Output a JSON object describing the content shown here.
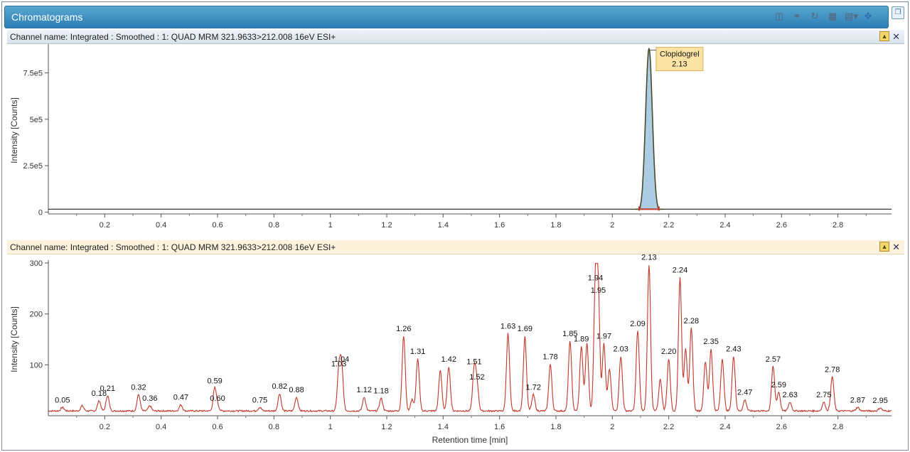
{
  "window": {
    "title": "Chromatograms",
    "toolbar_icons": [
      "zoom-icon",
      "overlay-icon",
      "refresh-icon",
      "table-icon",
      "export-icon",
      "move-icon"
    ],
    "restore_icon": "restore-window-icon"
  },
  "panes": [
    {
      "channel_label": "Channel name: Integrated : Smoothed : 1: QUAD MRM 321.9633>212.008 16eV ESI+"
    },
    {
      "channel_label": "Channel name: Integrated : Smoothed : 1: QUAD MRM 321.9633>212.008 16eV ESI+"
    }
  ],
  "chart_data": [
    {
      "type": "line",
      "xlabel": "",
      "ylabel": "Intensity [Counts]",
      "xlim": [
        0.0,
        2.99
      ],
      "ylim": [
        -10000,
        890000
      ],
      "x_ticks": [
        "0.2",
        "0.4",
        "0.6",
        "0.8",
        "1",
        "1.2",
        "1.4",
        "1.6",
        "1.8",
        "2",
        "2.2",
        "2.4",
        "2.6",
        "2.8"
      ],
      "y_ticks": [
        "0",
        "2.5e5",
        "5e5",
        "7.5e5"
      ],
      "y_tick_values": [
        0,
        250000,
        500000,
        750000
      ],
      "peaks": [
        {
          "center": 2.13,
          "height": 880000,
          "width": 0.012,
          "integrated": true
        }
      ],
      "annotations": [
        {
          "name": "Clopidogrel",
          "rt": "2.13",
          "x": 2.13,
          "y": 880000
        }
      ],
      "colors": {
        "line": "#4a4a2a",
        "fill": "#9cc3dd",
        "baseline": "#c0392b",
        "annotation_bg": "#fbe3a4"
      }
    },
    {
      "type": "line",
      "xlabel": "Retention time [min]",
      "ylabel": "Intensity [Counts]",
      "xlim": [
        0.0,
        2.99
      ],
      "ylim": [
        0,
        300
      ],
      "x_ticks": [
        "0.2",
        "0.4",
        "0.6",
        "0.8",
        "1",
        "1.2",
        "1.4",
        "1.6",
        "1.8",
        "2",
        "2.2",
        "2.4",
        "2.6",
        "2.8"
      ],
      "y_ticks": [
        "100",
        "200",
        "300"
      ],
      "y_tick_values": [
        100,
        200,
        300
      ],
      "peaks": [
        {
          "x": 0.05,
          "y": 15,
          "label": "0.05"
        },
        {
          "x": 0.12,
          "y": 18
        },
        {
          "x": 0.18,
          "y": 28,
          "label": "0.18"
        },
        {
          "x": 0.21,
          "y": 38,
          "label": "0.21"
        },
        {
          "x": 0.32,
          "y": 40,
          "label": "0.32"
        },
        {
          "x": 0.36,
          "y": 18,
          "label": "0.36"
        },
        {
          "x": 0.47,
          "y": 20,
          "label": "0.47"
        },
        {
          "x": 0.59,
          "y": 52,
          "label": "0.59"
        },
        {
          "x": 0.6,
          "y": 18,
          "label": "0.60"
        },
        {
          "x": 0.75,
          "y": 15,
          "label": "0.75"
        },
        {
          "x": 0.82,
          "y": 42,
          "label": "0.82"
        },
        {
          "x": 0.88,
          "y": 35,
          "label": "0.88"
        },
        {
          "x": 1.03,
          "y": 86,
          "label": "1.03"
        },
        {
          "x": 1.04,
          "y": 95,
          "label": "1.04"
        },
        {
          "x": 1.12,
          "y": 35,
          "label": "1.12"
        },
        {
          "x": 1.18,
          "y": 33,
          "label": "1.18"
        },
        {
          "x": 1.26,
          "y": 155,
          "label": "1.26"
        },
        {
          "x": 1.29,
          "y": 30
        },
        {
          "x": 1.31,
          "y": 110,
          "label": "1.31"
        },
        {
          "x": 1.39,
          "y": 88
        },
        {
          "x": 1.42,
          "y": 95,
          "label": "1.42"
        },
        {
          "x": 1.51,
          "y": 90,
          "label": "1.51"
        },
        {
          "x": 1.52,
          "y": 60,
          "label": "1.52"
        },
        {
          "x": 1.63,
          "y": 160,
          "label": "1.63"
        },
        {
          "x": 1.69,
          "y": 155,
          "label": "1.69"
        },
        {
          "x": 1.72,
          "y": 40,
          "label": "1.72"
        },
        {
          "x": 1.78,
          "y": 100,
          "label": "1.78"
        },
        {
          "x": 1.85,
          "y": 145,
          "label": "1.85"
        },
        {
          "x": 1.89,
          "y": 135,
          "label": "1.89"
        },
        {
          "x": 1.91,
          "y": 140
        },
        {
          "x": 1.94,
          "y": 255,
          "label": "1.94"
        },
        {
          "x": 1.95,
          "y": 230,
          "label": "1.95"
        },
        {
          "x": 1.97,
          "y": 140,
          "label": "1.97"
        },
        {
          "x": 1.99,
          "y": 90
        },
        {
          "x": 2.03,
          "y": 115,
          "label": "2.03"
        },
        {
          "x": 2.09,
          "y": 165,
          "label": "2.09"
        },
        {
          "x": 2.13,
          "y": 295,
          "label": "2.13"
        },
        {
          "x": 2.17,
          "y": 70
        },
        {
          "x": 2.2,
          "y": 110,
          "label": "2.20"
        },
        {
          "x": 2.24,
          "y": 270,
          "label": "2.24"
        },
        {
          "x": 2.26,
          "y": 130
        },
        {
          "x": 2.28,
          "y": 170,
          "label": "2.28"
        },
        {
          "x": 2.33,
          "y": 105
        },
        {
          "x": 2.35,
          "y": 130,
          "label": "2.35"
        },
        {
          "x": 2.39,
          "y": 110
        },
        {
          "x": 2.43,
          "y": 115,
          "label": "2.43"
        },
        {
          "x": 2.47,
          "y": 30,
          "label": "2.47"
        },
        {
          "x": 2.57,
          "y": 95,
          "label": "2.57"
        },
        {
          "x": 2.59,
          "y": 45,
          "label": "2.59"
        },
        {
          "x": 2.63,
          "y": 25,
          "label": "2.63"
        },
        {
          "x": 2.75,
          "y": 25,
          "label": "2.75"
        },
        {
          "x": 2.78,
          "y": 75,
          "label": "2.78"
        },
        {
          "x": 2.87,
          "y": 15,
          "label": "2.87"
        },
        {
          "x": 2.95,
          "y": 14,
          "label": "2.95"
        }
      ],
      "colors": {
        "line": "#c0392b"
      }
    }
  ]
}
